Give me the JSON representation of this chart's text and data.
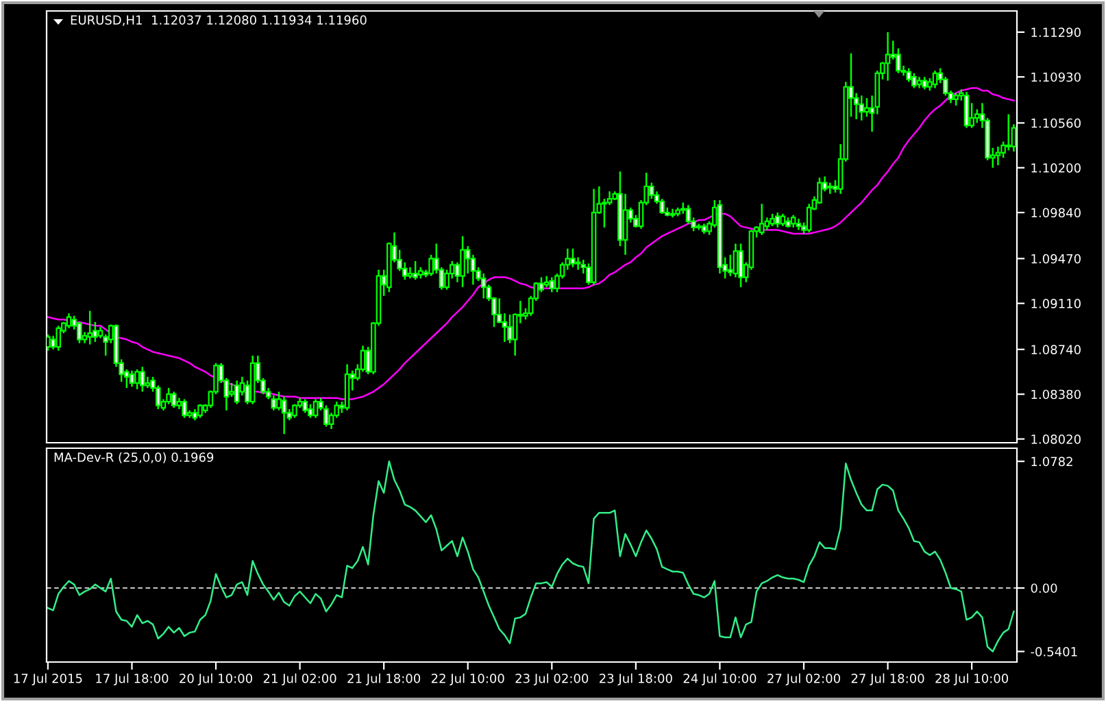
{
  "chart_data": [
    {
      "type": "candlestick",
      "title": "EURUSD,H1  1.12037 1.12080 1.11934 1.11960",
      "color": "#00ff00",
      "categories": [
        null,
        null,
        null,
        null,
        null,
        null,
        null,
        null,
        null,
        null,
        null,
        null,
        null,
        null,
        null,
        null,
        null,
        null,
        null,
        null,
        null,
        null,
        null,
        null,
        null,
        null,
        null,
        null,
        null,
        null,
        null,
        null,
        null,
        null,
        null,
        null,
        null,
        null,
        null,
        null,
        null,
        null,
        null,
        null,
        null,
        null,
        null,
        null,
        null,
        null,
        null,
        null,
        null,
        null,
        null,
        null,
        null,
        null,
        null,
        null,
        null,
        null,
        null,
        null,
        null,
        null,
        null,
        null,
        null,
        null,
        null,
        null,
        null,
        null,
        null,
        null,
        null,
        null,
        null,
        null,
        null,
        null,
        null,
        null,
        null,
        null,
        null,
        null,
        null,
        null,
        null,
        null,
        null,
        null,
        null,
        null,
        null,
        null,
        null,
        null,
        null,
        null,
        null,
        null,
        null,
        null,
        null,
        null,
        null,
        null,
        null,
        null,
        null,
        null,
        null,
        null,
        null,
        null,
        null,
        null,
        null,
        null,
        null,
        null,
        null,
        null,
        null,
        null,
        null,
        null,
        null,
        null,
        null,
        null,
        null,
        null,
        null,
        null,
        null,
        null,
        null,
        null,
        null,
        null,
        null,
        null,
        null,
        null,
        null,
        null,
        null,
        null,
        null,
        null,
        null,
        null,
        null,
        null,
        null,
        null,
        null,
        null,
        null,
        null,
        null,
        null,
        null,
        null,
        null,
        null,
        null,
        null,
        null,
        null,
        null,
        null,
        null,
        null,
        null,
        null,
        null,
        null,
        null,
        null,
        null
      ],
      "ohlc": [
        [
          1.0876,
          1.0886,
          1.0873,
          1.0884
        ],
        [
          1.0882,
          1.0885,
          1.0874,
          1.0876
        ],
        [
          1.0876,
          1.0893,
          1.0873,
          1.0891
        ],
        [
          1.0889,
          1.0896,
          1.0887,
          1.0895
        ],
        [
          1.0893,
          1.0903,
          1.0891,
          1.09
        ],
        [
          1.0898,
          1.0901,
          1.089,
          1.0893
        ],
        [
          1.0895,
          1.0896,
          1.0879,
          1.0882
        ],
        [
          1.0882,
          1.0888,
          1.0879,
          1.0885
        ],
        [
          1.0884,
          1.0905,
          1.0878,
          1.0887
        ],
        [
          1.0889,
          1.0896,
          1.088,
          1.0884
        ],
        [
          1.0885,
          1.0892,
          1.0883,
          1.0889
        ],
        [
          1.0884,
          1.0886,
          1.0869,
          1.088
        ],
        [
          1.0882,
          1.0894,
          1.0879,
          1.0893
        ],
        [
          1.0893,
          1.0894,
          1.086,
          1.0863
        ],
        [
          1.0863,
          1.0866,
          1.0848,
          1.0854
        ],
        [
          1.0856,
          1.0858,
          1.0843,
          1.0852
        ],
        [
          1.0854,
          1.0857,
          1.0844,
          1.0847
        ],
        [
          1.0847,
          1.0858,
          1.0842,
          1.0856
        ],
        [
          1.0856,
          1.086,
          1.084,
          1.0845
        ],
        [
          1.0845,
          1.0852,
          1.0843,
          1.0847
        ],
        [
          1.0849,
          1.0852,
          1.084,
          1.0843
        ],
        [
          1.0843,
          1.0845,
          1.0826,
          1.0829
        ],
        [
          1.0827,
          1.0834,
          1.0825,
          1.0832
        ],
        [
          1.0832,
          1.0843,
          1.083,
          1.0838
        ],
        [
          1.0838,
          1.084,
          1.0827,
          1.0829
        ],
        [
          1.0829,
          1.0835,
          1.0826,
          1.0832
        ],
        [
          1.0832,
          1.0834,
          1.0819,
          1.0821
        ],
        [
          1.0821,
          1.0825,
          1.0819,
          1.0823
        ],
        [
          1.0823,
          1.0826,
          1.0817,
          1.0819
        ],
        [
          1.0821,
          1.083,
          1.0819,
          1.0829
        ],
        [
          1.0825,
          1.083,
          1.0823,
          1.0829
        ],
        [
          1.0829,
          1.0841,
          1.0827,
          1.084
        ],
        [
          1.084,
          1.0863,
          1.0838,
          1.0861
        ],
        [
          1.0861,
          1.0863,
          1.0847,
          1.0849
        ],
        [
          1.0849,
          1.0851,
          1.0825,
          1.0836
        ],
        [
          1.0838,
          1.0847,
          1.0836,
          1.084
        ],
        [
          1.0845,
          1.0849,
          1.083,
          1.0832
        ],
        [
          1.084,
          1.0852,
          1.0837,
          1.0847
        ],
        [
          1.0845,
          1.0849,
          1.083,
          1.0832
        ],
        [
          1.0832,
          1.0869,
          1.083,
          1.0863
        ],
        [
          1.0863,
          1.0869,
          1.0847,
          1.0849
        ],
        [
          1.0849,
          1.0851,
          1.0838,
          1.084
        ],
        [
          1.084,
          1.0843,
          1.0834,
          1.0836
        ],
        [
          1.0834,
          1.0837,
          1.0825,
          1.0827
        ],
        [
          1.0827,
          1.084,
          1.0825,
          1.0834
        ],
        [
          1.0833,
          1.0836,
          1.0806,
          1.0823
        ],
        [
          1.0823,
          1.0826,
          1.0817,
          1.0819
        ],
        [
          1.0821,
          1.083,
          1.0819,
          1.0829
        ],
        [
          1.0829,
          1.0835,
          1.0827,
          1.0832
        ],
        [
          1.0832,
          1.0834,
          1.0823,
          1.0825
        ],
        [
          1.0826,
          1.083,
          1.0819,
          1.0821
        ],
        [
          1.0821,
          1.0834,
          1.0819,
          1.0832
        ],
        [
          1.0832,
          1.0835,
          1.0825,
          1.0827
        ],
        [
          1.0826,
          1.0829,
          1.0812,
          1.0814
        ],
        [
          1.0814,
          1.0823,
          1.081,
          1.0821
        ],
        [
          1.0821,
          1.0832,
          1.0819,
          1.0829
        ],
        [
          1.0829,
          1.0832,
          1.0823,
          1.0827
        ],
        [
          1.0827,
          1.0862,
          1.0825,
          1.0854
        ],
        [
          1.0854,
          1.0857,
          1.0841,
          1.0851
        ],
        [
          1.0851,
          1.0862,
          1.0849,
          1.0858
        ],
        [
          1.0858,
          1.0877,
          1.0856,
          1.0873
        ],
        [
          1.0873,
          1.0876,
          1.0854,
          1.0856
        ],
        [
          1.0856,
          1.0896,
          1.0854,
          1.0895
        ],
        [
          1.0895,
          1.0938,
          1.0893,
          1.0933
        ],
        [
          1.0933,
          1.0938,
          1.0917,
          1.0926
        ],
        [
          1.0924,
          1.096,
          1.092,
          1.0959
        ],
        [
          1.0957,
          1.0968,
          1.0944,
          1.0946
        ],
        [
          1.0946,
          1.0954,
          1.0937,
          1.0939
        ],
        [
          1.0939,
          1.0944,
          1.093,
          1.0933
        ],
        [
          1.0933,
          1.094,
          1.0931,
          1.0935
        ],
        [
          1.0935,
          1.0945,
          1.093,
          1.0932
        ],
        [
          1.0934,
          1.094,
          1.0931,
          1.0937
        ],
        [
          1.0936,
          1.0938,
          1.0932,
          1.0934
        ],
        [
          1.0935,
          1.095,
          1.0933,
          1.0947
        ],
        [
          1.0947,
          1.0959,
          1.0935,
          1.0938
        ],
        [
          1.0938,
          1.094,
          1.0922,
          1.0924
        ],
        [
          1.0924,
          1.0938,
          1.0922,
          1.0935
        ],
        [
          1.0935,
          1.0945,
          1.0931,
          1.0942
        ],
        [
          1.0942,
          1.0944,
          1.0928,
          1.0933
        ],
        [
          1.0933,
          1.0965,
          1.0924,
          1.0954
        ],
        [
          1.0954,
          1.0957,
          1.0935,
          1.0947
        ],
        [
          1.0947,
          1.095,
          1.0926,
          1.0937
        ],
        [
          1.0937,
          1.094,
          1.0929,
          1.0931
        ],
        [
          1.0931,
          1.0935,
          1.0915,
          1.0924
        ],
        [
          1.0924,
          1.0926,
          1.0913,
          1.0915
        ],
        [
          1.0915,
          1.0916,
          1.0892,
          1.0902
        ],
        [
          1.0902,
          1.0915,
          1.0895,
          1.0896
        ],
        [
          1.0896,
          1.0903,
          1.088,
          1.0892
        ],
        [
          1.0892,
          1.0902,
          1.0879,
          1.0882
        ],
        [
          1.0882,
          1.0903,
          1.0869,
          1.0902
        ],
        [
          1.0902,
          1.0913,
          1.0895,
          1.0901
        ],
        [
          1.0901,
          1.0907,
          1.0898,
          1.0903
        ],
        [
          1.0903,
          1.0917,
          1.0901,
          1.0915
        ],
        [
          1.0915,
          1.0928,
          1.0913,
          1.0927
        ],
        [
          1.0927,
          1.0932,
          1.092,
          1.0922
        ],
        [
          1.0926,
          1.0933,
          1.0924,
          1.0928
        ],
        [
          1.0929,
          1.0932,
          1.092,
          1.0923
        ],
        [
          1.0923,
          1.0935,
          1.092,
          1.0933
        ],
        [
          1.0933,
          1.0944,
          1.0931,
          1.0942
        ],
        [
          1.0942,
          1.0955,
          1.0938,
          1.0947
        ],
        [
          1.0947,
          1.0955,
          1.094,
          1.0943
        ],
        [
          1.0943,
          1.0948,
          1.0938,
          1.0944
        ],
        [
          1.0942,
          1.0946,
          1.0935,
          1.094
        ],
        [
          1.094,
          1.0943,
          1.0926,
          1.0928
        ],
        [
          1.0928,
          1.1003,
          1.0926,
          1.0984
        ],
        [
          1.0984,
          1.1005,
          1.0983,
          1.0991
        ],
        [
          1.0991,
          1.0995,
          1.0972,
          1.0992
        ],
        [
          1.0992,
          1.1001,
          1.099,
          1.0995
        ],
        [
          1.0995,
          1.1001,
          1.0994,
          1.0999
        ],
        [
          1.0999,
          1.1017,
          1.0957,
          1.0962
        ],
        [
          1.0962,
          1.0999,
          1.095,
          1.0986
        ],
        [
          1.0986,
          1.0988,
          1.0976,
          1.0979
        ],
        [
          1.0979,
          1.0982,
          1.0972,
          1.0973
        ],
        [
          1.0973,
          1.0994,
          1.0971,
          1.0992
        ],
        [
          1.0992,
          1.1016,
          1.099,
          1.1005
        ],
        [
          1.1005,
          1.1008,
          1.0995,
          1.0998
        ],
        [
          1.0998,
          1.1001,
          1.0991,
          1.0993
        ],
        [
          1.0993,
          1.0995,
          1.0983,
          1.0984
        ],
        [
          1.0984,
          1.0988,
          1.0981,
          1.0982
        ],
        [
          1.0982,
          1.0987,
          1.098,
          1.0983
        ],
        [
          1.0983,
          1.0988,
          1.0981,
          1.0986
        ],
        [
          1.0986,
          1.0992,
          1.0983,
          1.0987
        ],
        [
          1.0987,
          1.099,
          1.0975,
          1.0977
        ],
        [
          1.0977,
          1.098,
          1.0969,
          1.0972
        ],
        [
          1.0972,
          1.0975,
          1.097,
          1.0973
        ],
        [
          1.0973,
          1.0975,
          1.0967,
          1.0969
        ],
        [
          1.0969,
          1.0977,
          1.0966,
          1.0975
        ],
        [
          1.0974,
          1.0994,
          1.0972,
          1.0988
        ],
        [
          1.099,
          1.0994,
          1.0935,
          1.094
        ],
        [
          1.0942,
          1.0948,
          1.0931,
          1.0937
        ],
        [
          1.0938,
          1.095,
          1.0933,
          1.0936
        ],
        [
          1.0935,
          1.0959,
          1.0932,
          1.0953
        ],
        [
          1.0953,
          1.0959,
          1.0924,
          1.0932
        ],
        [
          1.0932,
          1.0944,
          1.0928,
          1.0942
        ],
        [
          1.094,
          1.097,
          1.0938,
          1.0969
        ],
        [
          1.0969,
          1.0973,
          1.0964,
          1.0972
        ],
        [
          1.0968,
          1.0991,
          1.0966,
          1.0975
        ],
        [
          1.0973,
          1.098,
          1.097,
          1.0977
        ],
        [
          1.0975,
          1.0983,
          1.0973,
          1.0979
        ],
        [
          1.0981,
          1.0984,
          1.0972,
          1.0975
        ],
        [
          1.0975,
          1.0983,
          1.0973,
          1.0981
        ],
        [
          1.0977,
          1.098,
          1.0972,
          1.0973
        ],
        [
          1.0975,
          1.0982,
          1.0972,
          1.098
        ],
        [
          1.0975,
          1.0979,
          1.097,
          1.0973
        ],
        [
          1.0973,
          1.0976,
          1.0967,
          1.097
        ],
        [
          1.097,
          1.0991,
          1.0968,
          1.0988
        ],
        [
          1.0987,
          1.0997,
          1.0986,
          1.0994
        ],
        [
          1.0992,
          1.1012,
          1.0991,
          1.1008
        ],
        [
          1.1008,
          1.1013,
          1.1001,
          1.1003
        ],
        [
          1.1004,
          1.1008,
          1.0999,
          1.1005
        ],
        [
          1.1005,
          1.101,
          1.1,
          1.1003
        ],
        [
          1.1003,
          1.1039,
          1.0999,
          1.1027
        ],
        [
          1.1027,
          1.1089,
          1.1025,
          1.1085
        ],
        [
          1.1085,
          1.1112,
          1.1061,
          1.1076
        ],
        [
          1.1076,
          1.108,
          1.1059,
          1.1071
        ],
        [
          1.1071,
          1.1078,
          1.1058,
          1.1065
        ],
        [
          1.1065,
          1.1076,
          1.1061,
          1.1068
        ],
        [
          1.1068,
          1.1078,
          1.1049,
          1.1064
        ],
        [
          1.1069,
          1.1098,
          1.1063,
          1.1096
        ],
        [
          1.1096,
          1.1105,
          1.1091,
          1.1104
        ],
        [
          1.1104,
          1.1129,
          1.109,
          1.1111
        ],
        [
          1.1111,
          1.1122,
          1.1107,
          1.1109
        ],
        [
          1.1111,
          1.1116,
          1.1096,
          1.1098
        ],
        [
          1.1098,
          1.1102,
          1.1094,
          1.1097
        ],
        [
          1.1097,
          1.11,
          1.1089,
          1.1091
        ],
        [
          1.1093,
          1.1096,
          1.1084,
          1.1086
        ],
        [
          1.1087,
          1.1093,
          1.1084,
          1.109
        ],
        [
          1.109,
          1.1093,
          1.1083,
          1.1085
        ],
        [
          1.1085,
          1.1092,
          1.1082,
          1.1089
        ],
        [
          1.1087,
          1.1098,
          1.1084,
          1.1096
        ],
        [
          1.1096,
          1.11,
          1.1088,
          1.1091
        ],
        [
          1.1091,
          1.1093,
          1.1078,
          1.108
        ],
        [
          1.108,
          1.1082,
          1.1072,
          1.1075
        ],
        [
          1.1075,
          1.108,
          1.107,
          1.1078
        ],
        [
          1.1078,
          1.1083,
          1.1074,
          1.108
        ],
        [
          1.1078,
          1.1081,
          1.1052,
          1.1054
        ],
        [
          1.1054,
          1.1072,
          1.1052,
          1.106
        ],
        [
          1.106,
          1.1067,
          1.1056,
          1.1063
        ],
        [
          1.1063,
          1.1072,
          1.1052,
          1.1058
        ],
        [
          1.1058,
          1.106,
          1.1026,
          1.1028
        ],
        [
          1.1028,
          1.1036,
          1.102,
          1.103
        ],
        [
          1.103,
          1.1037,
          1.1022,
          1.1032
        ],
        [
          1.1032,
          1.1041,
          1.1028,
          1.1038
        ],
        [
          1.1038,
          1.1063,
          1.1034,
          1.1037
        ],
        [
          1.1037,
          1.1055,
          1.1033,
          1.1052
        ]
      ],
      "series": [
        {
          "type": "line",
          "color": "#ff00ff",
          "values": [
            1.09,
            1.0899,
            1.0898,
            1.0898,
            1.0897,
            1.0896,
            1.0896,
            1.0895,
            1.0894,
            1.0893,
            1.0893,
            1.089,
            1.0887,
            1.0884,
            1.0883,
            1.0882,
            1.088,
            1.0879,
            1.0876,
            1.0874,
            1.0872,
            1.0871,
            1.087,
            1.0869,
            1.0868,
            1.0867,
            1.0865,
            1.0863,
            1.086,
            1.0858,
            1.0856,
            1.0853,
            1.0851,
            1.0849,
            1.0847,
            1.0846,
            1.0844,
            1.0843,
            1.0841,
            1.084,
            1.084,
            1.0839,
            1.0839,
            1.0838,
            1.0837,
            1.0836,
            1.0836,
            1.0836,
            1.0835,
            1.0835,
            1.0835,
            1.0835,
            1.0835,
            1.0835,
            1.0835,
            1.0835,
            1.0834,
            1.0834,
            1.0834,
            1.0835,
            1.0836,
            1.0838,
            1.084,
            1.0843,
            1.0846,
            1.085,
            1.0854,
            1.0858,
            1.0863,
            1.0867,
            1.0871,
            1.0875,
            1.0879,
            1.0883,
            1.0887,
            1.0891,
            1.0895,
            1.09,
            1.0904,
            1.0908,
            1.0913,
            1.0918,
            1.0924,
            1.0927,
            1.093,
            1.0932,
            1.0932,
            1.0932,
            1.0931,
            1.0929,
            1.0927,
            1.0926,
            1.0924,
            1.0923,
            1.0923,
            1.0923,
            1.0923,
            1.0923,
            1.0923,
            1.0923,
            1.0923,
            1.0923,
            1.0923,
            1.0924,
            1.0926,
            1.0927,
            1.093,
            1.0934,
            1.0936,
            1.0939,
            1.0942,
            1.0944,
            1.0948,
            1.0951,
            1.0956,
            1.0959,
            1.0962,
            1.0965,
            1.0967,
            1.0969,
            1.0971,
            1.0973,
            1.0975,
            1.0976,
            1.0978,
            1.0978,
            1.098,
            1.0982,
            1.0983,
            1.0983,
            1.0981,
            1.0977,
            1.0973,
            1.0972,
            1.0971,
            1.097,
            1.097,
            1.097,
            1.097,
            1.097,
            1.0969,
            1.0968,
            1.0967,
            1.0967,
            1.0967,
            1.0967,
            1.0968,
            1.0969,
            1.097,
            1.0971,
            1.0973,
            1.0976,
            1.098,
            1.0984,
            1.0988,
            1.0992,
            1.0997,
            1.1002,
            1.1006,
            1.1012,
            1.1017,
            1.1023,
            1.1028,
            1.1036,
            1.1042,
            1.1047,
            1.1052,
            1.1058,
            1.1063,
            1.1067,
            1.107,
            1.1074,
            1.1078,
            1.108,
            1.1082,
            1.1083,
            1.1084,
            1.1084,
            1.1082,
            1.1082,
            1.1079,
            1.1078,
            1.1076,
            1.1075,
            1.1074
          ]
        }
      ],
      "ylim": [
        1.0799,
        1.1146
      ],
      "yticks": [
        {
          "value": 1.1129,
          "label": "1.11290"
        },
        {
          "value": 1.1093,
          "label": "1.10930"
        },
        {
          "value": 1.1056,
          "label": "1.10560"
        },
        {
          "value": 1.102,
          "label": "1.10200"
        },
        {
          "value": 1.0984,
          "label": "1.09840"
        },
        {
          "value": 1.0947,
          "label": "1.09470"
        },
        {
          "value": 1.0911,
          "label": "1.09110"
        },
        {
          "value": 1.0874,
          "label": "1.08740"
        },
        {
          "value": 1.0838,
          "label": "1.08380"
        },
        {
          "value": 1.0802,
          "label": "1.08020"
        }
      ],
      "tick_labels": "y"
    },
    {
      "type": "line",
      "title": "MA-Dev-R (25,0,0) 0.1969",
      "categories": [
        "17 Jul 2015",
        null,
        null,
        null,
        null,
        null,
        null,
        null,
        null,
        null,
        null,
        null,
        null,
        null,
        null,
        null,
        "17 Jul 18:00",
        null,
        null,
        null,
        null,
        null,
        null,
        null,
        null,
        null,
        null,
        null,
        null,
        null,
        null,
        null,
        "20 Jul 10:00",
        null,
        null,
        null,
        null,
        null,
        null,
        null,
        null,
        null,
        null,
        null,
        null,
        null,
        null,
        null,
        "21 Jul 02:00",
        null,
        null,
        null,
        null,
        null,
        null,
        null,
        null,
        null,
        null,
        null,
        null,
        null,
        null,
        null,
        "21 Jul 18:00",
        null,
        null,
        null,
        null,
        null,
        null,
        null,
        null,
        null,
        null,
        null,
        null,
        null,
        null,
        null,
        "22 Jul 10:00",
        null,
        null,
        null,
        null,
        null,
        null,
        null,
        null,
        null,
        null,
        null,
        null,
        null,
        null,
        null,
        "23 Jul 02:00",
        null,
        null,
        null,
        null,
        null,
        null,
        null,
        null,
        null,
        null,
        null,
        null,
        null,
        null,
        null,
        "23 Jul 18:00",
        null,
        null,
        null,
        null,
        null,
        null,
        null,
        null,
        null,
        null,
        null,
        null,
        null,
        null,
        null,
        "24 Jul 10:00",
        null,
        null,
        null,
        null,
        null,
        null,
        null,
        null,
        null,
        null,
        null,
        null,
        null,
        null,
        null,
        "27 Jul 02:00",
        null,
        null,
        null,
        null,
        null,
        null,
        null,
        null,
        null,
        null,
        null,
        null,
        null,
        null,
        null,
        "27 Jul 18:00",
        null,
        null,
        null,
        null,
        null,
        null,
        null,
        null,
        null,
        null,
        null,
        null,
        null,
        null,
        null,
        "28 Jul 10:00",
        null,
        null,
        null,
        null,
        null,
        null,
        null,
        null
      ],
      "series": [
        {
          "color": "#33ee88",
          "values": [
            -0.17,
            -0.19,
            -0.05,
            0.01,
            0.06,
            0.03,
            -0.06,
            -0.03,
            -0.01,
            0.03,
            0.0,
            -0.03,
            0.08,
            -0.2,
            -0.27,
            -0.28,
            -0.33,
            -0.23,
            -0.3,
            -0.28,
            -0.31,
            -0.43,
            -0.39,
            -0.33,
            -0.38,
            -0.34,
            -0.41,
            -0.38,
            -0.37,
            -0.27,
            -0.23,
            -0.11,
            0.12,
            0.01,
            -0.08,
            -0.06,
            0.03,
            0.05,
            -0.06,
            0.23,
            0.12,
            0.03,
            -0.03,
            -0.1,
            -0.04,
            -0.12,
            -0.15,
            -0.07,
            -0.03,
            -0.08,
            -0.13,
            -0.05,
            -0.09,
            -0.2,
            -0.14,
            -0.06,
            -0.08,
            0.19,
            0.17,
            0.23,
            0.35,
            0.2,
            0.62,
            0.91,
            0.81,
            1.0782,
            0.92,
            0.83,
            0.71,
            0.69,
            0.66,
            0.61,
            0.56,
            0.62,
            0.5,
            0.32,
            0.36,
            0.4,
            0.27,
            0.43,
            0.31,
            0.16,
            0.09,
            -0.03,
            -0.15,
            -0.25,
            -0.35,
            -0.4,
            -0.47,
            -0.26,
            -0.25,
            -0.22,
            -0.08,
            0.04,
            0.04,
            0.05,
            0.01,
            0.12,
            0.2,
            0.25,
            0.21,
            0.19,
            0.18,
            0.04,
            0.59,
            0.64,
            0.64,
            0.64,
            0.66,
            0.27,
            0.46,
            0.37,
            0.27,
            0.39,
            0.49,
            0.42,
            0.33,
            0.18,
            0.16,
            0.14,
            0.14,
            0.13,
            0.03,
            -0.05,
            -0.06,
            -0.08,
            -0.05,
            0.06,
            -0.41,
            -0.42,
            -0.42,
            -0.25,
            -0.42,
            -0.31,
            -0.29,
            -0.03,
            0.04,
            0.06,
            0.09,
            0.11,
            0.09,
            0.08,
            0.08,
            0.07,
            0.05,
            0.19,
            0.27,
            0.39,
            0.34,
            0.34,
            0.33,
            0.51,
            1.06,
            0.92,
            0.81,
            0.71,
            0.66,
            0.66,
            0.84,
            0.88,
            0.87,
            0.83,
            0.66,
            0.59,
            0.51,
            0.4,
            0.39,
            0.31,
            0.28,
            0.31,
            0.24,
            0.13,
            0.0,
            -0.01,
            -0.03,
            -0.27,
            -0.25,
            -0.2,
            -0.25,
            -0.5,
            -0.5401,
            -0.45,
            -0.38,
            -0.35,
            -0.2
          ]
        }
      ],
      "ylim": [
        -0.63,
        1.19
      ],
      "yticks": [
        1.0782,
        {
          "value": 0,
          "label": "0.00"
        },
        -0.5401
      ],
      "ref_lines": [
        {
          "axis": "y",
          "value": 0,
          "color": "#c8c8c8",
          "line_style": "dashed"
        }
      ]
    }
  ]
}
